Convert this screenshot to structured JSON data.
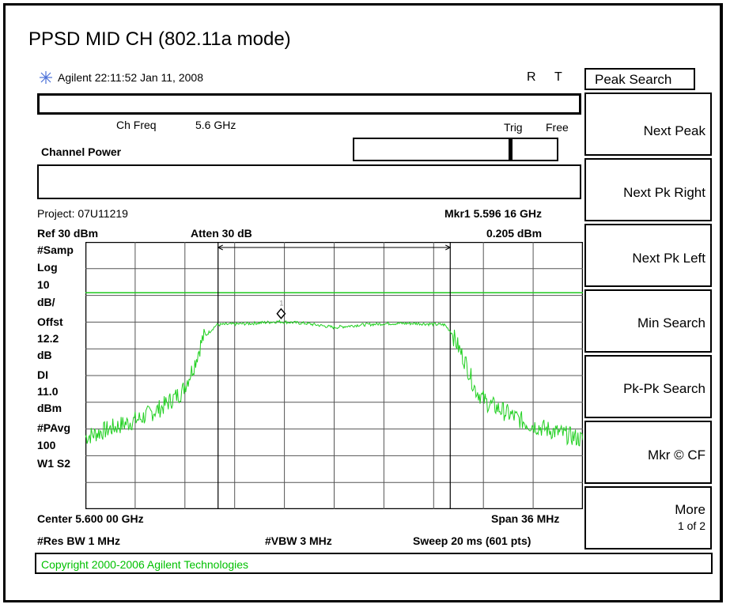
{
  "title": "PPSD MID CH (802.11a mode)",
  "header": {
    "brand": "Agilent",
    "time": "22:11:52",
    "date": "Jan 11, 2008",
    "r_label": "R",
    "t_label": "T"
  },
  "measurement": {
    "ch_freq_label": "Ch Freq",
    "ch_freq_value": "5.6 GHz",
    "trig_label": "Trig",
    "trig_value": "Free",
    "channel_power_label": "Channel Power"
  },
  "project": "Project: 07U11219",
  "marker": {
    "readout": "Mkr1  5.596 16 GHz",
    "value": "0.205 dBm",
    "label": "1"
  },
  "ref": "Ref 30 dBm",
  "atten": "Atten 30 dB",
  "left_labels": [
    "#Samp",
    "Log",
    "10",
    "dB/",
    "Offst",
    "12.2",
    "dB",
    "DI",
    "11.0",
    "dBm",
    "#PAvg",
    "100",
    "W1  S2"
  ],
  "footer": {
    "center": "Center 5.600 00 GHz",
    "span": "Span 36 MHz",
    "res_bw": "#Res BW 1 MHz",
    "vbw": "#VBW 3 MHz",
    "sweep": "Sweep 20 ms (601 pts)"
  },
  "copyright": "Copyright 2000-2006 Agilent Technologies",
  "softkeys": {
    "title": "Peak Search",
    "items": [
      "Next Peak",
      "Next Pk Right",
      "Next Pk Left",
      "Min Search",
      "Pk-Pk Search",
      "Mkr © CF",
      "More"
    ],
    "more_sub": "1 of 2"
  },
  "chart_data": {
    "type": "line",
    "x_range_ghz": [
      5.582,
      5.618
    ],
    "y_range_dbm": [
      -70,
      30
    ],
    "display_line_dbm": 11.0,
    "channel_bw_marks_ghz": [
      5.5916,
      5.6084
    ],
    "marker": {
      "x_ghz": 5.59616,
      "y_dbm": 0.205
    },
    "series": [
      {
        "x_ghz": [
          5.582,
          5.586,
          5.5875,
          5.589,
          5.5898,
          5.5905,
          5.5915,
          5.594,
          5.596,
          5.598,
          5.6,
          5.602,
          5.604,
          5.606,
          5.608,
          5.6085,
          5.6095,
          5.6102,
          5.611,
          5.6125,
          5.614,
          5.618
        ],
        "y_dbm": [
          -43,
          -36,
          -32,
          -26,
          -17,
          -6,
          -1,
          -0.5,
          0.2,
          -0.5,
          -2,
          -1,
          -0.5,
          -0.5,
          -1,
          -4,
          -15,
          -25,
          -30,
          -34,
          -38,
          -44
        ]
      }
    ]
  }
}
